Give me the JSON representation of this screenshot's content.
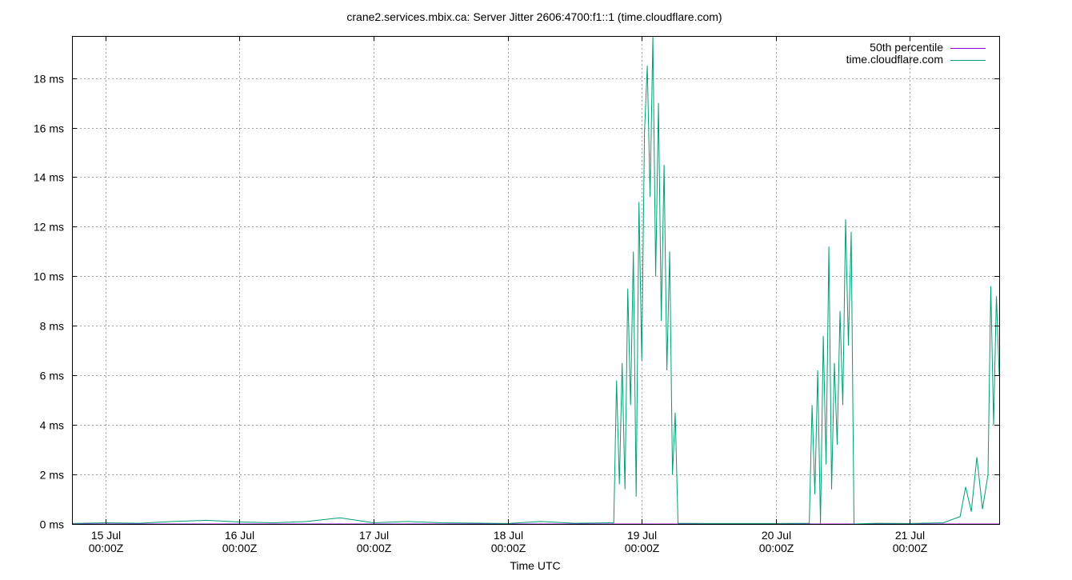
{
  "chart_data": {
    "type": "line",
    "title": "crane2.services.mbix.ca: Server Jitter 2606:4700:f1::1 (time.cloudflare.com)",
    "xlabel": "Time UTC",
    "ylabel": "",
    "x_axis": {
      "type": "time",
      "range": [
        "2025-07-14T18:00Z",
        "2025-07-21T16:00Z"
      ],
      "ticks": [
        {
          "date": "2025-07-15T00:00Z",
          "line1": "15 Jul",
          "line2": "00:00Z"
        },
        {
          "date": "2025-07-16T00:00Z",
          "line1": "16 Jul",
          "line2": "00:00Z"
        },
        {
          "date": "2025-07-17T00:00Z",
          "line1": "17 Jul",
          "line2": "00:00Z"
        },
        {
          "date": "2025-07-18T00:00Z",
          "line1": "18 Jul",
          "line2": "00:00Z"
        },
        {
          "date": "2025-07-19T00:00Z",
          "line1": "19 Jul",
          "line2": "00:00Z"
        },
        {
          "date": "2025-07-20T00:00Z",
          "line1": "20 Jul",
          "line2": "00:00Z"
        },
        {
          "date": "2025-07-21T00:00Z",
          "line1": "21 Jul",
          "line2": "00:00Z"
        }
      ]
    },
    "y_axis": {
      "unit": "ms",
      "range": [
        0,
        19.7
      ],
      "ticks": [
        {
          "value": 0,
          "label": "0 ms"
        },
        {
          "value": 2,
          "label": "2 ms"
        },
        {
          "value": 4,
          "label": "4 ms"
        },
        {
          "value": 6,
          "label": "6 ms"
        },
        {
          "value": 8,
          "label": "8 ms"
        },
        {
          "value": 10,
          "label": "10 ms"
        },
        {
          "value": 12,
          "label": "12 ms"
        },
        {
          "value": 14,
          "label": "14 ms"
        },
        {
          "value": 16,
          "label": "16 ms"
        },
        {
          "value": 18,
          "label": "18 ms"
        }
      ]
    },
    "grid": true,
    "legend_position": "top-right",
    "series": [
      {
        "name": "50th percentile",
        "color": "#9400d3",
        "points": [
          [
            "2025-07-14T18:00Z",
            0
          ],
          [
            "2025-07-21T16:00Z",
            0
          ]
        ]
      },
      {
        "name": "time.cloudflare.com",
        "color": "#009e73",
        "points": [
          [
            "2025-07-14T18:00Z",
            0.02
          ],
          [
            "2025-07-15T00:00Z",
            0.05
          ],
          [
            "2025-07-15T06:00Z",
            0.03
          ],
          [
            "2025-07-15T12:00Z",
            0.1
          ],
          [
            "2025-07-15T18:00Z",
            0.15
          ],
          [
            "2025-07-16T00:00Z",
            0.08
          ],
          [
            "2025-07-16T06:00Z",
            0.05
          ],
          [
            "2025-07-16T12:00Z",
            0.1
          ],
          [
            "2025-07-16T18:00Z",
            0.25
          ],
          [
            "2025-07-17T00:00Z",
            0.05
          ],
          [
            "2025-07-17T06:00Z",
            0.1
          ],
          [
            "2025-07-17T12:00Z",
            0.05
          ],
          [
            "2025-07-18T00:00Z",
            0.02
          ],
          [
            "2025-07-18T06:00Z",
            0.1
          ],
          [
            "2025-07-18T12:00Z",
            0.03
          ],
          [
            "2025-07-18T19:00Z",
            0.05
          ],
          [
            "2025-07-18T19:30Z",
            5.8
          ],
          [
            "2025-07-18T20:00Z",
            1.6
          ],
          [
            "2025-07-18T20:30Z",
            6.5
          ],
          [
            "2025-07-18T21:00Z",
            1.4
          ],
          [
            "2025-07-18T21:30Z",
            9.5
          ],
          [
            "2025-07-18T22:00Z",
            4.8
          ],
          [
            "2025-07-18T22:30Z",
            11.0
          ],
          [
            "2025-07-18T23:00Z",
            1.1
          ],
          [
            "2025-07-18T23:30Z",
            13.0
          ],
          [
            "2025-07-19T00:00Z",
            6.6
          ],
          [
            "2025-07-19T00:30Z",
            15.8
          ],
          [
            "2025-07-19T01:00Z",
            18.5
          ],
          [
            "2025-07-19T01:30Z",
            13.2
          ],
          [
            "2025-07-19T02:00Z",
            19.7
          ],
          [
            "2025-07-19T02:30Z",
            10.0
          ],
          [
            "2025-07-19T03:00Z",
            17.0
          ],
          [
            "2025-07-19T03:30Z",
            8.2
          ],
          [
            "2025-07-19T04:00Z",
            14.5
          ],
          [
            "2025-07-19T04:30Z",
            6.2
          ],
          [
            "2025-07-19T05:00Z",
            11.0
          ],
          [
            "2025-07-19T05:30Z",
            2.0
          ],
          [
            "2025-07-19T06:00Z",
            4.5
          ],
          [
            "2025-07-19T06:30Z",
            0.03
          ],
          [
            "2025-07-19T12:00Z",
            0.02
          ],
          [
            "2025-07-20T00:00Z",
            0.02
          ],
          [
            "2025-07-20T06:00Z",
            0.03
          ],
          [
            "2025-07-20T06:30Z",
            4.8
          ],
          [
            "2025-07-20T07:00Z",
            1.2
          ],
          [
            "2025-07-20T07:30Z",
            6.2
          ],
          [
            "2025-07-20T08:00Z",
            0.0
          ],
          [
            "2025-07-20T08:30Z",
            7.6
          ],
          [
            "2025-07-20T09:00Z",
            2.4
          ],
          [
            "2025-07-20T09:30Z",
            11.2
          ],
          [
            "2025-07-20T10:00Z",
            1.4
          ],
          [
            "2025-07-20T10:30Z",
            6.5
          ],
          [
            "2025-07-20T11:00Z",
            3.2
          ],
          [
            "2025-07-20T11:30Z",
            8.6
          ],
          [
            "2025-07-20T12:00Z",
            4.8
          ],
          [
            "2025-07-20T12:30Z",
            12.3
          ],
          [
            "2025-07-20T13:00Z",
            7.2
          ],
          [
            "2025-07-20T13:30Z",
            11.8
          ],
          [
            "2025-07-20T14:00Z",
            0.0
          ],
          [
            "2025-07-20T18:00Z",
            0.03
          ],
          [
            "2025-07-21T00:00Z",
            0.02
          ],
          [
            "2025-07-21T06:00Z",
            0.05
          ],
          [
            "2025-07-21T09:00Z",
            0.3
          ],
          [
            "2025-07-21T10:00Z",
            1.5
          ],
          [
            "2025-07-21T11:00Z",
            0.5
          ],
          [
            "2025-07-21T12:00Z",
            2.7
          ],
          [
            "2025-07-21T13:00Z",
            0.6
          ],
          [
            "2025-07-21T14:00Z",
            2.0
          ],
          [
            "2025-07-21T14:30Z",
            9.6
          ],
          [
            "2025-07-21T15:00Z",
            4.0
          ],
          [
            "2025-07-21T15:30Z",
            9.2
          ],
          [
            "2025-07-21T16:00Z",
            6.0
          ]
        ]
      }
    ]
  }
}
